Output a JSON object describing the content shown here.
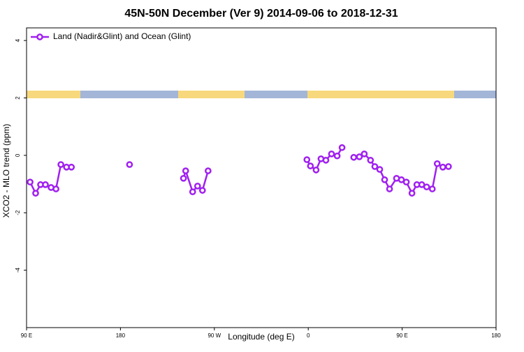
{
  "chart_data": {
    "type": "line",
    "title": "45N-50N December (Ver 9)   2014-09-06 to 2018-12-31",
    "xlabel": "Longitude (deg E)",
    "ylabel": "XCO2 - MLO trend (ppm)",
    "xlim": [
      90,
      540
    ],
    "ylim": [
      -6,
      4.44
    ],
    "xticks": [
      {
        "value": 90,
        "label": "90 E"
      },
      180,
      {
        "value": 270,
        "label": "90 W"
      },
      0,
      {
        "value": 450,
        "label": "90 E"
      },
      {
        "value": 540,
        "label": "180"
      }
    ],
    "yticks": [
      -4,
      -2,
      0,
      2,
      4
    ],
    "legend": "top-left",
    "series": [
      {
        "name": "Land (Nadir&Glint) and Ocean (Glint)",
        "color": "#a020f0",
        "x": [
          93.4,
          98.7,
          103.4,
          108.1,
          113.5,
          118.2,
          122.9,
          128.3,
          133.0,
          null,
          188.7,
          null,
          240.4,
          242.5,
          249.2,
          253.9,
          258.6,
          264.0,
          null,
          358.7,
          362.1,
          367.5,
          372.2,
          376.9,
          382.3,
          387.7,
          392.4,
          null,
          403.6,
          409.0,
          413.7,
          419.7,
          423.8,
          428.5,
          433.2,
          437.9,
          444.6,
          449.3,
          454.0,
          459.4,
          464.1,
          468.8,
          473.5,
          478.9,
          483.6,
          489.0,
          494.4
        ],
        "values": [
          -0.93,
          -1.32,
          -1.02,
          -1.02,
          -1.12,
          -1.17,
          -0.32,
          -0.41,
          -0.41,
          null,
          -0.32,
          null,
          -0.8,
          -0.54,
          -1.27,
          -1.07,
          -1.22,
          -0.54,
          null,
          -0.15,
          -0.37,
          -0.51,
          -0.12,
          -0.17,
          0.05,
          -0.02,
          0.27,
          null,
          -0.07,
          -0.05,
          0.05,
          -0.17,
          -0.39,
          -0.49,
          -0.85,
          -1.17,
          -0.8,
          -0.85,
          -0.93,
          -1.32,
          -1.02,
          -1.02,
          -1.1,
          -1.17,
          -0.29,
          -0.41,
          -0.39
        ]
      }
    ]
  }
}
